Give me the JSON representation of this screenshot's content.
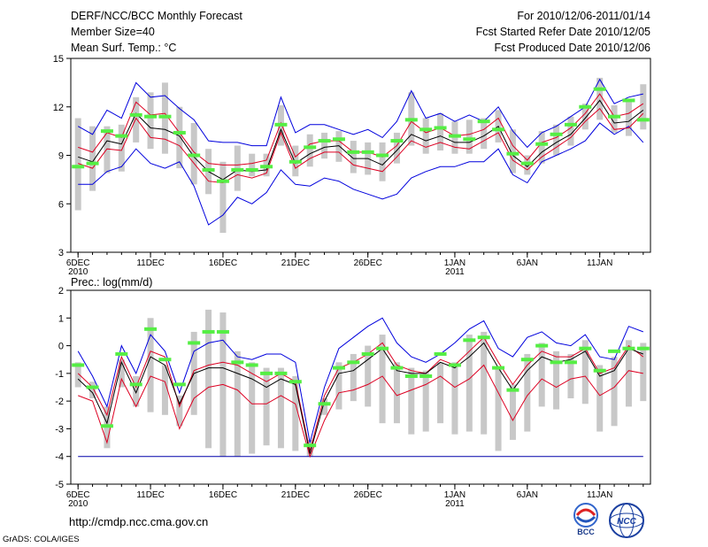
{
  "header": {
    "title": "DERF/NCC/BCC Monthly Forecast",
    "member": "Member Size=40",
    "variable": "Mean Surf. Temp.: °C",
    "period": "For 2010/12/06-2011/01/14",
    "refer": "Fcst Started Refer Date 2010/12/05",
    "produced": "Fcst Produced Date 2010/12/06"
  },
  "url": "http://cmdp.ncc.cma.gov.cn",
  "footer": "GrADS: COLA/IGES",
  "logos": {
    "bcc": "BCC",
    "ncc": "NCC"
  },
  "colors": {
    "spread": "#c8c8c8",
    "median": "#55ee44",
    "envelope": "#0000dd",
    "quartile": "#dd0022",
    "mean": "#000000",
    "floor": "#0000aa"
  },
  "chart_data": [
    {
      "type": "line",
      "title": "Mean Surf. Temp.: °C",
      "x_tick_labels": [
        {
          "day": 1,
          "label": "6DEC",
          "sub": "2010"
        },
        {
          "day": 6,
          "label": "11DEC"
        },
        {
          "day": 11,
          "label": "16DEC"
        },
        {
          "day": 16,
          "label": "21DEC"
        },
        {
          "day": 21,
          "label": "26DEC"
        },
        {
          "day": 27,
          "label": "1JAN",
          "sub": "2011"
        },
        {
          "day": 32,
          "label": "6JAN"
        },
        {
          "day": 37,
          "label": "11JAN"
        }
      ],
      "xlim": [
        0.5,
        40.5
      ],
      "ylim": [
        3,
        15
      ],
      "yticks": [
        3,
        6,
        9,
        12,
        15
      ],
      "days": [
        1,
        2,
        3,
        4,
        5,
        6,
        7,
        8,
        9,
        10,
        11,
        12,
        13,
        14,
        15,
        16,
        17,
        18,
        19,
        20,
        21,
        22,
        23,
        24,
        25,
        26,
        27,
        28,
        29,
        30,
        31,
        32,
        33,
        34,
        35,
        36,
        37,
        38,
        39,
        40
      ],
      "series": [
        {
          "name": "min",
          "values": [
            7.2,
            7.2,
            8.0,
            8.3,
            9.4,
            8.5,
            8.2,
            8.6,
            7.1,
            4.7,
            5.3,
            6.4,
            6.0,
            6.7,
            8.1,
            7.2,
            7.1,
            7.6,
            7.4,
            6.9,
            6.6,
            6.3,
            6.6,
            7.6,
            8.0,
            8.3,
            8.3,
            8.6,
            8.6,
            9.4,
            7.8,
            7.3,
            8.6,
            9.0,
            9.4,
            9.9,
            11.0,
            10.3,
            10.8,
            9.8
          ]
        },
        {
          "name": "max",
          "values": [
            10.8,
            10.3,
            11.8,
            11.3,
            13.5,
            12.6,
            12.7,
            11.9,
            11.2,
            9.9,
            9.8,
            9.8,
            9.6,
            9.6,
            12.6,
            10.4,
            10.9,
            10.9,
            10.6,
            10.3,
            10.6,
            10.1,
            11.1,
            13.0,
            11.3,
            11.6,
            11.1,
            11.5,
            11.1,
            12.0,
            10.5,
            9.5,
            10.4,
            10.8,
            11.4,
            12.0,
            13.7,
            12.2,
            12.6,
            12.8
          ]
        },
        {
          "name": "upper",
          "values": [
            9.5,
            9.2,
            10.4,
            10.1,
            12.3,
            11.5,
            11.6,
            10.4,
            9.2,
            8.5,
            8.4,
            8.4,
            8.5,
            8.7,
            11.0,
            8.9,
            9.7,
            9.9,
            9.9,
            9.2,
            9.2,
            8.9,
            9.6,
            11.1,
            10.4,
            10.7,
            10.2,
            10.3,
            10.6,
            11.3,
            9.6,
            8.7,
            9.8,
            10.1,
            10.7,
            11.6,
            12.8,
            11.4,
            11.6,
            12.2
          ]
        },
        {
          "name": "mean",
          "values": [
            8.9,
            8.6,
            9.9,
            9.7,
            11.6,
            10.7,
            10.6,
            10.2,
            8.9,
            8.0,
            7.5,
            8.1,
            8.0,
            8.1,
            10.6,
            8.5,
            9.1,
            9.5,
            9.6,
            8.8,
            8.8,
            8.4,
            9.3,
            10.3,
            9.9,
            10.2,
            9.8,
            9.8,
            10.2,
            10.8,
            9.0,
            8.3,
            9.2,
            9.8,
            10.3,
            11.3,
            12.4,
            11.0,
            11.1,
            11.8
          ]
        },
        {
          "name": "lower",
          "values": [
            8.5,
            8.2,
            9.4,
            9.3,
            11.3,
            10.1,
            10.0,
            9.6,
            8.5,
            7.4,
            7.3,
            7.8,
            7.6,
            7.9,
            10.4,
            8.2,
            8.8,
            9.2,
            9.2,
            8.4,
            8.2,
            8.0,
            8.9,
            9.9,
            9.5,
            9.8,
            9.5,
            9.4,
            9.9,
            10.4,
            8.7,
            8.1,
            8.9,
            9.5,
            10.1,
            11.1,
            11.9,
            10.6,
            10.7,
            11.6
          ]
        },
        {
          "name": "median",
          "values": [
            8.3,
            8.5,
            10.5,
            10.2,
            11.5,
            11.4,
            11.4,
            10.4,
            9.0,
            8.1,
            7.4,
            8.1,
            8.1,
            8.3,
            10.9,
            8.6,
            9.5,
            9.9,
            10.0,
            9.2,
            9.2,
            9.0,
            9.9,
            11.2,
            10.6,
            10.7,
            10.2,
            10.0,
            11.1,
            10.6,
            9.1,
            8.5,
            9.7,
            10.3,
            10.9,
            12.0,
            13.1,
            11.4,
            12.4,
            11.2
          ]
        },
        {
          "name": "spread_low",
          "values": [
            5.6,
            6.8,
            7.9,
            8.0,
            9.8,
            9.4,
            9.1,
            8.2,
            7.2,
            6.6,
            4.2,
            6.8,
            7.7,
            7.7,
            9.6,
            7.7,
            8.3,
            8.8,
            8.6,
            7.9,
            7.8,
            7.4,
            8.5,
            9.6,
            9.1,
            9.3,
            9.1,
            9.1,
            9.4,
            9.8,
            7.9,
            7.8,
            8.5,
            9.0,
            9.6,
            10.6,
            11.2,
            10.4,
            10.2,
            10.6
          ]
        },
        {
          "name": "spread_high",
          "values": [
            11.3,
            10.8,
            10.8,
            10.9,
            12.6,
            12.9,
            13.5,
            12.0,
            11.0,
            9.4,
            8.6,
            9.6,
            9.1,
            9.1,
            12.1,
            9.6,
            10.3,
            10.4,
            10.5,
            9.9,
            9.8,
            9.8,
            10.4,
            12.9,
            11.3,
            11.6,
            11.1,
            11.2,
            11.3,
            11.8,
            10.6,
            9.0,
            10.5,
            10.9,
            11.4,
            12.2,
            13.8,
            12.1,
            12.3,
            13.4
          ]
        }
      ]
    },
    {
      "type": "line",
      "title": "Prec.: log(mm/d)",
      "x_tick_labels": [
        {
          "day": 1,
          "label": "6DEC",
          "sub": "2010"
        },
        {
          "day": 6,
          "label": "11DEC"
        },
        {
          "day": 11,
          "label": "16DEC"
        },
        {
          "day": 16,
          "label": "21DEC"
        },
        {
          "day": 21,
          "label": "26DEC"
        },
        {
          "day": 27,
          "label": "1JAN",
          "sub": "2011"
        },
        {
          "day": 32,
          "label": "6JAN"
        },
        {
          "day": 37,
          "label": "11JAN"
        }
      ],
      "xlim": [
        0.5,
        40.5
      ],
      "ylim": [
        -5,
        2
      ],
      "yticks": [
        -5,
        -4,
        -3,
        -2,
        -1,
        0,
        1,
        2
      ],
      "days": [
        1,
        2,
        3,
        4,
        5,
        6,
        7,
        8,
        9,
        10,
        11,
        12,
        13,
        14,
        15,
        16,
        17,
        18,
        19,
        20,
        21,
        22,
        23,
        24,
        25,
        26,
        27,
        28,
        29,
        30,
        31,
        32,
        33,
        34,
        35,
        36,
        37,
        38,
        39,
        40
      ],
      "series": [
        {
          "name": "min",
          "values": [
            -4.0,
            -4.0,
            -4.0,
            -4.0,
            -4.0,
            -4.0,
            -4.0,
            -4.0,
            -4.0,
            -4.0,
            -4.0,
            -4.0,
            -4.0,
            -4.0,
            -4.0,
            -4.0,
            -4.0,
            -4.0,
            -4.0,
            -4.0,
            -4.0,
            -4.0,
            -4.0,
            -4.0,
            -4.0,
            -4.0,
            -4.0,
            -4.0,
            -4.0,
            -4.0,
            -4.0,
            -4.0,
            -4.0,
            -4.0,
            -4.0,
            -4.0,
            -4.0,
            -4.0,
            -4.0,
            -4.0
          ]
        },
        {
          "name": "max",
          "values": [
            -0.2,
            -1.1,
            -2.2,
            0.0,
            -1.0,
            0.4,
            -0.2,
            -1.7,
            -0.2,
            0.1,
            0.2,
            -0.4,
            -0.5,
            -0.3,
            -0.3,
            -0.6,
            -3.5,
            -1.5,
            -0.1,
            0.3,
            0.7,
            1.0,
            0.1,
            -0.4,
            -0.6,
            -0.3,
            0.1,
            0.6,
            0.9,
            -0.1,
            -0.4,
            0.3,
            0.5,
            0.1,
            0.0,
            0.4,
            -0.4,
            -0.5,
            0.7,
            0.5
          ]
        },
        {
          "name": "upper",
          "values": [
            -1.0,
            -1.5,
            -2.5,
            -0.4,
            -1.5,
            -0.2,
            -0.4,
            -2.2,
            -0.9,
            -0.7,
            -0.6,
            -0.7,
            -1.0,
            -1.3,
            -1.0,
            -1.3,
            -3.8,
            -1.8,
            -0.8,
            -0.6,
            -0.3,
            0.1,
            -0.7,
            -0.9,
            -1.0,
            -0.5,
            -0.7,
            -0.2,
            0.3,
            -0.6,
            -1.4,
            -0.7,
            -0.2,
            -0.4,
            -0.4,
            -0.1,
            -1.0,
            -0.8,
            0.0,
            -0.4
          ]
        },
        {
          "name": "mean",
          "values": [
            -1.2,
            -1.7,
            -2.8,
            -0.6,
            -1.7,
            -0.4,
            -0.7,
            -2.1,
            -1.0,
            -0.8,
            -0.8,
            -1.0,
            -1.2,
            -1.5,
            -1.2,
            -1.4,
            -3.9,
            -2.0,
            -1.0,
            -0.9,
            -0.5,
            -0.1,
            -0.9,
            -1.0,
            -1.0,
            -0.6,
            -0.8,
            -0.4,
            0.1,
            -0.8,
            -1.6,
            -0.9,
            -0.4,
            -0.6,
            -0.5,
            -0.2,
            -1.1,
            -0.9,
            -0.1,
            -0.3
          ]
        },
        {
          "name": "lower",
          "values": [
            -1.8,
            -2.0,
            -3.5,
            -1.2,
            -2.2,
            -1.1,
            -1.3,
            -3.0,
            -1.9,
            -1.5,
            -1.4,
            -1.6,
            -2.1,
            -2.1,
            -1.8,
            -2.1,
            -4.0,
            -2.7,
            -1.7,
            -1.6,
            -1.4,
            -1.1,
            -1.8,
            -1.6,
            -1.4,
            -1.1,
            -1.5,
            -1.2,
            -0.7,
            -1.7,
            -2.7,
            -1.8,
            -1.2,
            -1.5,
            -1.2,
            -1.1,
            -1.8,
            -1.5,
            -0.9,
            -1.0
          ]
        },
        {
          "name": "median",
          "values": [
            -0.7,
            -1.5,
            -2.9,
            -0.3,
            -1.4,
            0.6,
            -0.5,
            -1.4,
            0.1,
            0.5,
            0.5,
            -0.6,
            -0.7,
            -1.0,
            -1.0,
            -1.3,
            -3.6,
            -2.1,
            -0.8,
            -0.6,
            -0.3,
            -0.1,
            -0.8,
            -1.1,
            -1.1,
            -0.3,
            -0.7,
            0.2,
            0.3,
            -0.8,
            -1.6,
            -0.5,
            0.0,
            -0.6,
            -0.6,
            -0.1,
            -0.9,
            -0.2,
            -0.1,
            -0.1
          ]
        },
        {
          "name": "spread_low",
          "values": [
            -1.5,
            -1.9,
            -3.7,
            -1.5,
            -2.2,
            -2.4,
            -2.5,
            -2.9,
            -2.5,
            -3.7,
            -4.0,
            -4.0,
            -3.9,
            -3.6,
            -3.7,
            -3.8,
            -4.0,
            -2.5,
            -2.3,
            -2.0,
            -2.2,
            -2.8,
            -2.8,
            -3.2,
            -3.1,
            -2.8,
            -3.2,
            -3.1,
            -3.2,
            -3.8,
            -3.4,
            -3.1,
            -2.2,
            -2.3,
            -1.9,
            -2.1,
            -3.1,
            -2.9,
            -2.2,
            -2.0
          ]
        },
        {
          "name": "spread_high",
          "values": [
            -0.6,
            -1.3,
            -2.2,
            -0.5,
            -1.1,
            1.0,
            -0.7,
            -1.8,
            0.5,
            1.3,
            1.2,
            -0.2,
            -0.6,
            -0.8,
            -0.8,
            -1.1,
            -3.4,
            -1.9,
            -0.6,
            -0.3,
            0.0,
            0.4,
            -0.6,
            -0.8,
            -0.9,
            -0.6,
            -0.6,
            0.4,
            0.5,
            -0.8,
            -1.4,
            -0.3,
            0.1,
            -0.2,
            -0.3,
            0.2,
            -0.7,
            -0.4,
            0.2,
            0.1
          ]
        }
      ]
    }
  ]
}
